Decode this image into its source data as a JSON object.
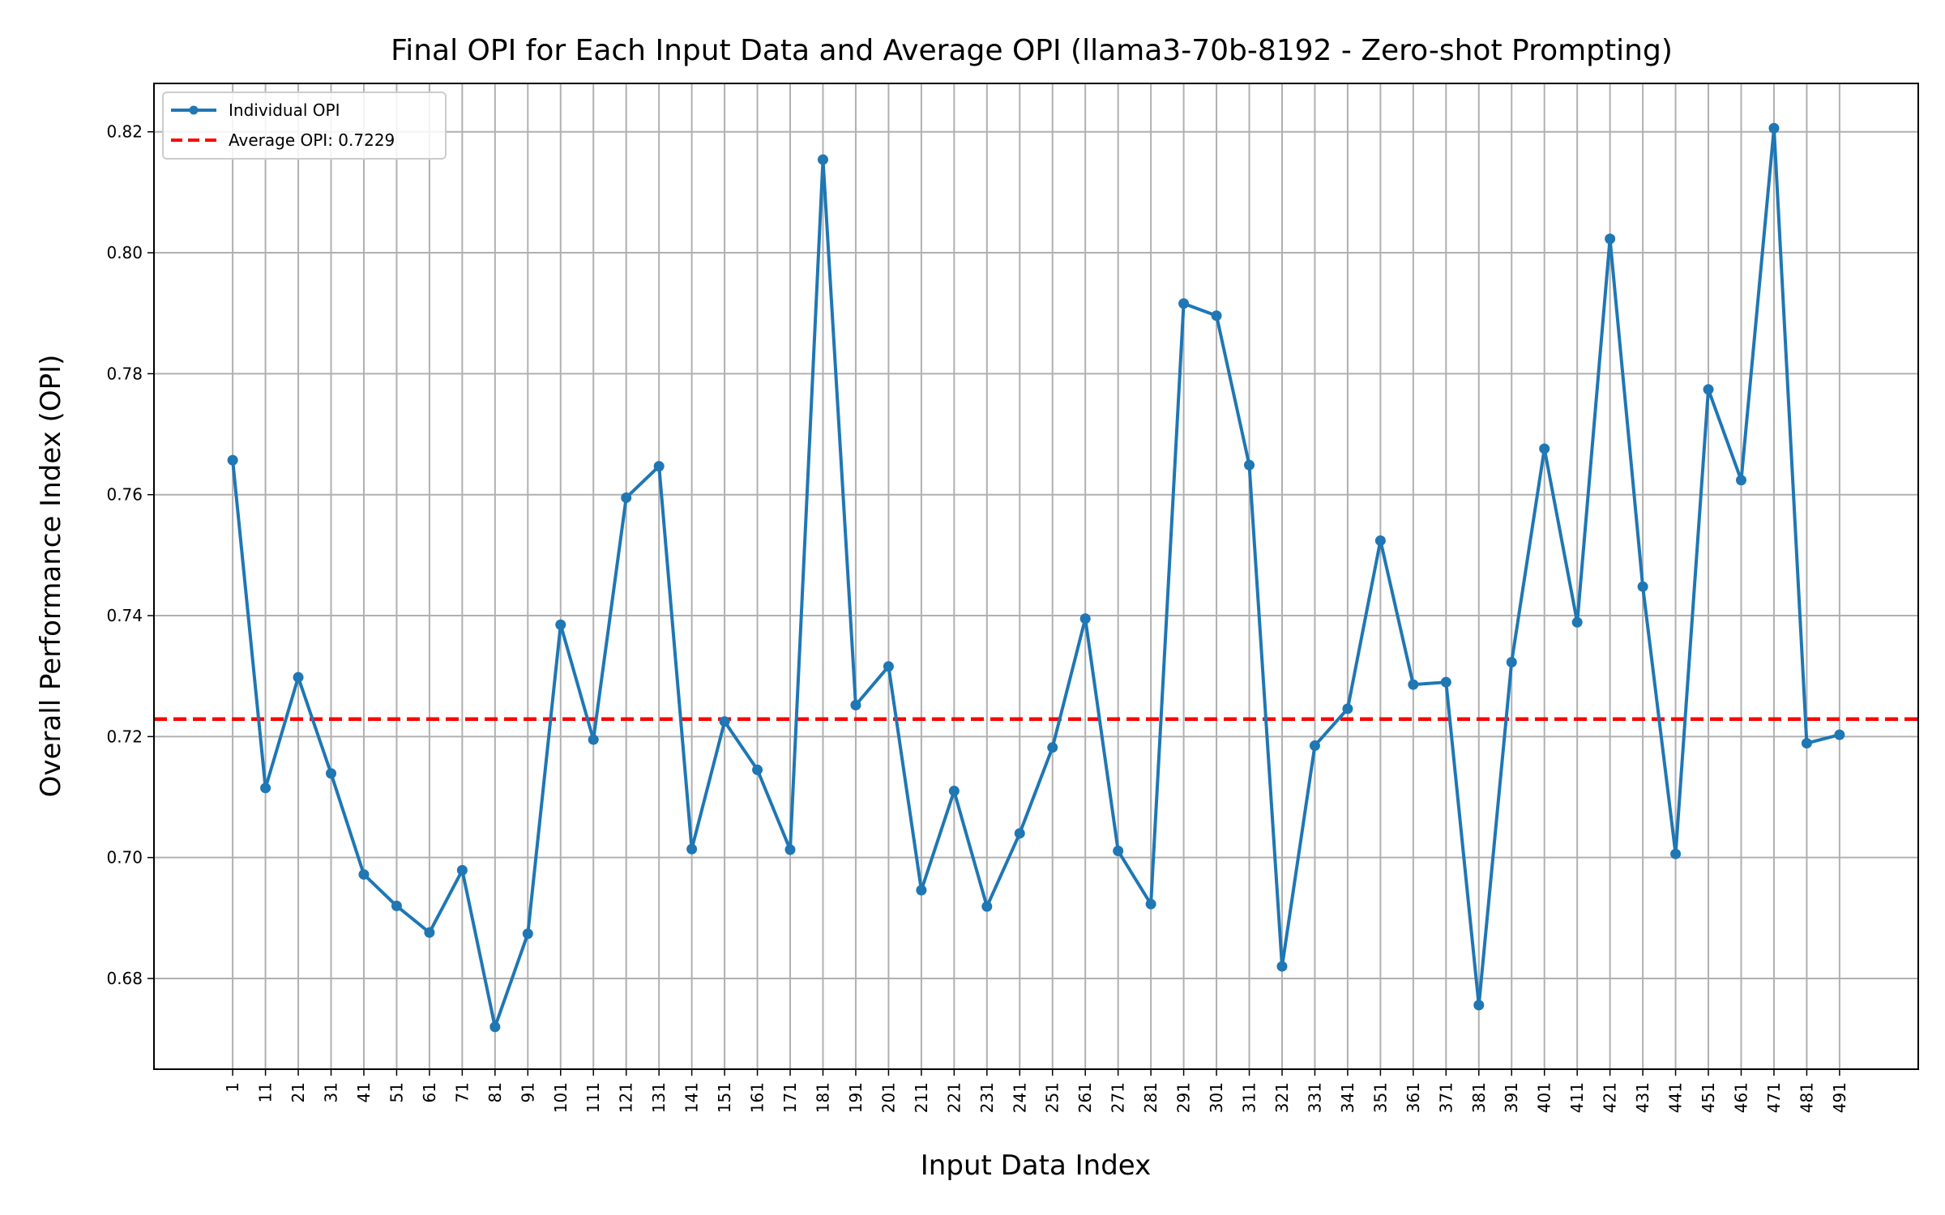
{
  "chart_data": {
    "type": "line",
    "title": "Final OPI for Each Input Data and Average OPI (llama3-70b-8192 - Zero-shot Prompting)",
    "xlabel": "Input Data Index",
    "ylabel": "Overall Performance Index (OPI)",
    "ylim": [
      0.665,
      0.828
    ],
    "yticks": [
      "0.68",
      "0.70",
      "0.72",
      "0.74",
      "0.76",
      "0.78",
      "0.80",
      "0.82"
    ],
    "grid": true,
    "legend_position": "top-left",
    "x": [
      1,
      11,
      21,
      31,
      41,
      51,
      61,
      71,
      81,
      91,
      101,
      111,
      121,
      131,
      141,
      151,
      161,
      171,
      181,
      191,
      201,
      211,
      221,
      231,
      241,
      251,
      261,
      271,
      281,
      291,
      301,
      311,
      321,
      331,
      341,
      351,
      361,
      371,
      381,
      391,
      401,
      411,
      421,
      431,
      441,
      451,
      461,
      471,
      481,
      491
    ],
    "series": [
      {
        "name": "Individual OPI",
        "color": "#1f77b4",
        "values": [
          0.7657,
          0.7115,
          0.7298,
          0.7139,
          0.6972,
          0.692,
          0.6876,
          0.6979,
          0.672,
          0.6874,
          0.7385,
          0.7195,
          0.7595,
          0.7647,
          0.7014,
          0.7225,
          0.7145,
          0.7013,
          0.8154,
          0.7252,
          0.7316,
          0.6946,
          0.711,
          0.6919,
          0.704,
          0.7182,
          0.7395,
          0.7011,
          0.6923,
          0.7916,
          0.7896,
          0.7649,
          0.682,
          0.7185,
          0.7246,
          0.7524,
          0.7286,
          0.729,
          0.6756,
          0.7323,
          0.7676,
          0.7389,
          0.8023,
          0.7448,
          0.7006,
          0.7774,
          0.7624,
          0.8206,
          0.7189,
          0.7203
        ]
      }
    ],
    "average": {
      "name": "Average OPI: 0.7229",
      "value": 0.7229,
      "color": "#ff0000"
    }
  }
}
